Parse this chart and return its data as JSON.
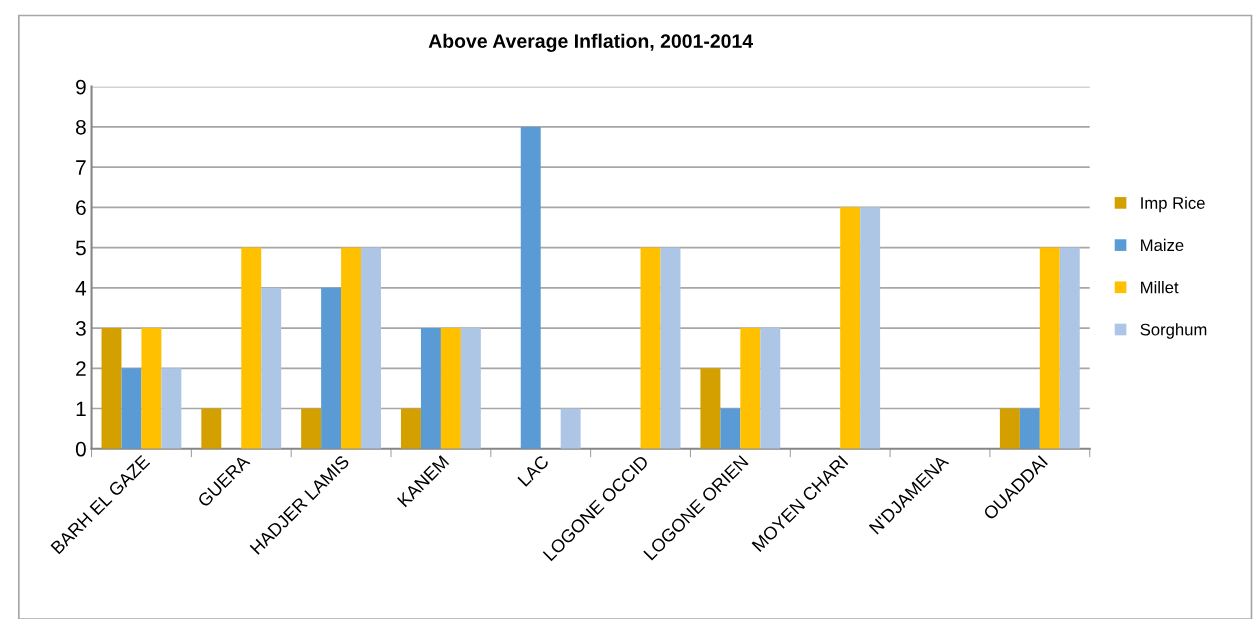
{
  "chart_data": {
    "type": "bar",
    "title": "Above Average Inflation, 2001-2014",
    "categories": [
      "BARH EL GAZE",
      "GUERA",
      "HADJER LAMIS",
      "KANEM",
      "LAC",
      "LOGONE OCCID",
      "LOGONE ORIEN",
      "MOYEN CHARI",
      "N'DJAMENA",
      "OUADDAI"
    ],
    "series": [
      {
        "name": "Imp Rice",
        "color": "#d4a000",
        "values": [
          3,
          1,
          1,
          1,
          0,
          0,
          2,
          0,
          0,
          1
        ]
      },
      {
        "name": "Maize",
        "color": "#5b9bd5",
        "values": [
          2,
          0,
          4,
          3,
          8,
          0,
          1,
          0,
          0,
          1
        ]
      },
      {
        "name": "Millet",
        "color": "#ffc000",
        "values": [
          3,
          5,
          5,
          3,
          0,
          5,
          3,
          6,
          0,
          5
        ]
      },
      {
        "name": "Sorghum",
        "color": "#aec6e6",
        "values": [
          2,
          4,
          5,
          3,
          1,
          5,
          3,
          6,
          0,
          5
        ]
      }
    ],
    "ylim": [
      0,
      9
    ],
    "yticks": [
      0,
      1,
      2,
      3,
      4,
      5,
      6,
      7,
      8,
      9
    ],
    "grid": "y",
    "legend": "right"
  }
}
